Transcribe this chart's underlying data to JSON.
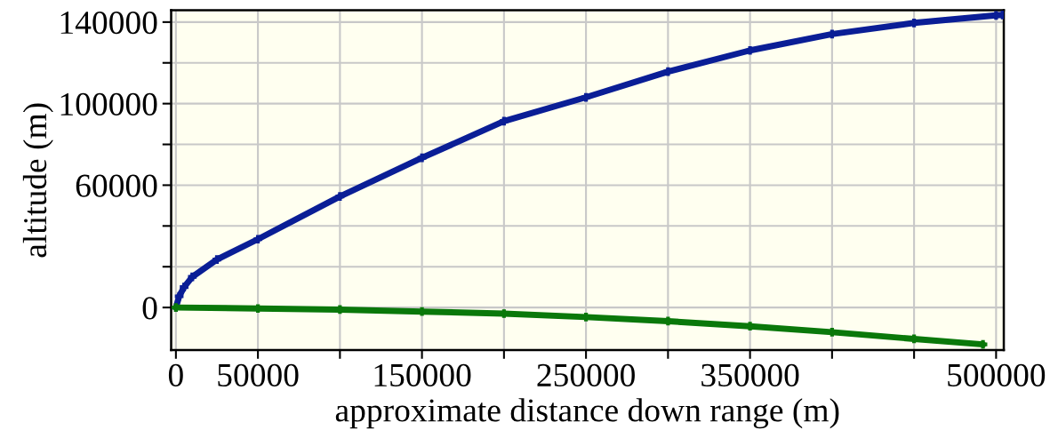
{
  "chart_data": {
    "type": "line",
    "xlabel": "approximate distance down range (m)",
    "ylabel": "altitude (m)",
    "x": [
      0,
      2000,
      5000,
      10000,
      25000,
      50000,
      100000,
      150000,
      200000,
      250000,
      300000,
      350000,
      400000,
      450000,
      500000,
      504000
    ],
    "series": [
      {
        "color": "#0a1e96",
        "values": [
          0,
          5500,
          10000,
          15000,
          23500,
          33500,
          54500,
          73400,
          91400,
          103100,
          115700,
          126100,
          134100,
          139600,
          143300,
          143500
        ]
      },
      {
        "color": "#0a780a",
        "x": [
          0,
          50000,
          100000,
          150000,
          200000,
          250000,
          300000,
          350000,
          400000,
          450000,
          492000
        ],
        "values": [
          0,
          -500,
          -1000,
          -2000,
          -3000,
          -4700,
          -6700,
          -9200,
          -12100,
          -15400,
          -18100
        ]
      }
    ],
    "xlim": [
      -2900,
      504700
    ],
    "ylim": [
      -20900,
      145800
    ],
    "xticks": [
      0,
      50000,
      {
        "value": 100000,
        "label": null
      },
      150000,
      {
        "value": 200000,
        "label": null
      },
      250000,
      {
        "value": 300000,
        "label": null
      },
      350000,
      {
        "value": 400000,
        "label": null
      },
      {
        "value": 450000,
        "label": null
      },
      500000
    ],
    "yticks": [
      0,
      {
        "value": 20000,
        "label": null
      },
      {
        "value": 40000,
        "label": null
      },
      60000,
      {
        "value": 80000,
        "label": null
      },
      100000,
      {
        "value": 120000,
        "label": null
      },
      140000
    ],
    "grid": true,
    "marker": "cross",
    "line_style": "solid"
  }
}
